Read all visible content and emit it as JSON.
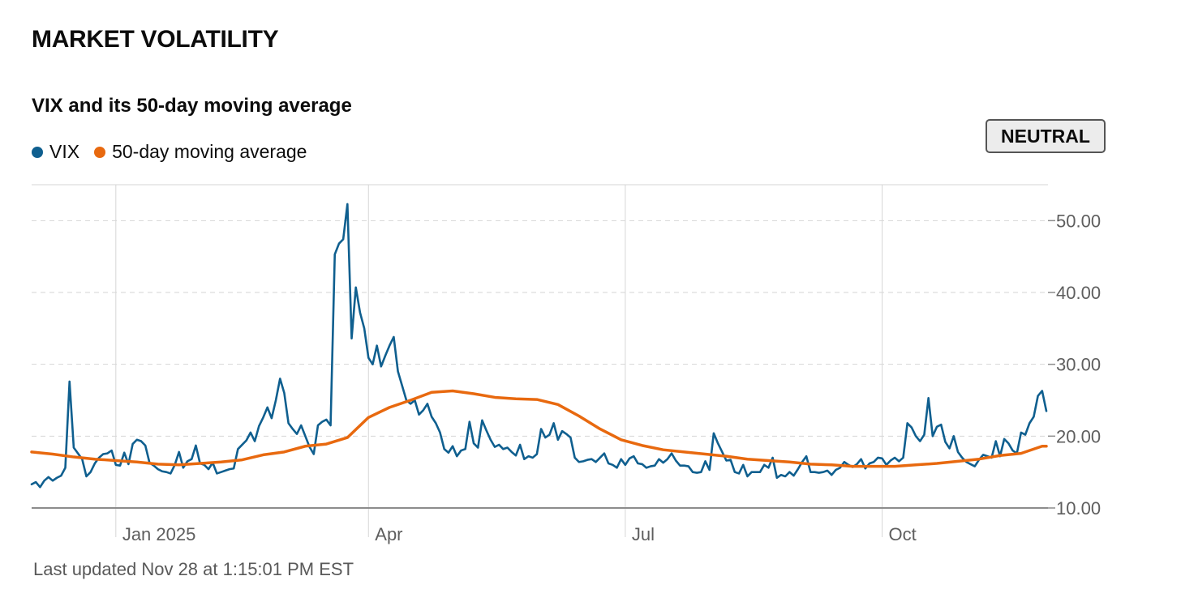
{
  "header": {
    "title": "MARKET VOLATILITY"
  },
  "status_badge": {
    "label": "NEUTRAL"
  },
  "footer": {
    "last_updated": "Last updated Nov 28 at 1:15:01 PM EST"
  },
  "colors": {
    "vix": "#0f5f8f",
    "ma": "#e8690f",
    "grid": "#d6d6d6",
    "axis": "#8c8c8c"
  },
  "chart_data": {
    "type": "line",
    "title": "VIX and its 50-day moving average",
    "xlabel": "",
    "ylabel": "",
    "x_domain": [
      0,
      241
    ],
    "ylim": [
      10,
      55
    ],
    "y_ticks": [
      {
        "value": 10,
        "label": "10.00"
      },
      {
        "value": 20,
        "label": "20.00"
      },
      {
        "value": 30,
        "label": "30.00"
      },
      {
        "value": 40,
        "label": "40.00"
      },
      {
        "value": 50,
        "label": "50.00"
      }
    ],
    "x_ticks": [
      {
        "x": 20,
        "label": "Jan 2025"
      },
      {
        "x": 80,
        "label": "Apr"
      },
      {
        "x": 141,
        "label": "Jul"
      },
      {
        "x": 202,
        "label": "Oct"
      }
    ],
    "legend_position": "top-left",
    "series": [
      {
        "name": "VIX",
        "color_key": "vix",
        "points": [
          [
            0,
            13.3
          ],
          [
            1,
            13.6
          ],
          [
            2,
            12.9
          ],
          [
            3,
            13.8
          ],
          [
            4,
            14.3
          ],
          [
            5,
            13.8
          ],
          [
            6,
            14.2
          ],
          [
            7,
            14.5
          ],
          [
            8,
            15.6
          ],
          [
            9,
            27.6
          ],
          [
            10,
            18.4
          ],
          [
            11,
            17.6
          ],
          [
            12,
            16.8
          ],
          [
            13,
            14.4
          ],
          [
            14,
            15.0
          ],
          [
            15,
            16.2
          ],
          [
            16,
            17.0
          ],
          [
            17,
            17.5
          ],
          [
            18,
            17.6
          ],
          [
            19,
            18.0
          ],
          [
            20,
            16.0
          ],
          [
            21,
            15.9
          ],
          [
            22,
            17.7
          ],
          [
            23,
            16.1
          ],
          [
            24,
            18.9
          ],
          [
            25,
            19.5
          ],
          [
            26,
            19.3
          ],
          [
            27,
            18.7
          ],
          [
            28,
            16.3
          ],
          [
            29,
            15.9
          ],
          [
            30,
            15.4
          ],
          [
            31,
            15.1
          ],
          [
            32,
            15.0
          ],
          [
            33,
            14.8
          ],
          [
            34,
            16.0
          ],
          [
            35,
            17.8
          ],
          [
            36,
            15.6
          ],
          [
            37,
            16.5
          ],
          [
            38,
            16.8
          ],
          [
            39,
            18.7
          ],
          [
            40,
            16.2
          ],
          [
            41,
            16.0
          ],
          [
            42,
            15.4
          ],
          [
            43,
            16.3
          ],
          [
            44,
            14.8
          ],
          [
            45,
            15.0
          ],
          [
            46,
            15.2
          ],
          [
            47,
            15.4
          ],
          [
            48,
            15.5
          ],
          [
            49,
            18.2
          ],
          [
            50,
            18.8
          ],
          [
            51,
            19.4
          ],
          [
            52,
            20.5
          ],
          [
            53,
            19.3
          ],
          [
            54,
            21.4
          ],
          [
            55,
            22.6
          ],
          [
            56,
            24.0
          ],
          [
            57,
            22.5
          ],
          [
            58,
            25.0
          ],
          [
            59,
            28.0
          ],
          [
            60,
            26.0
          ],
          [
            61,
            21.8
          ],
          [
            62,
            21.0
          ],
          [
            63,
            20.3
          ],
          [
            64,
            21.5
          ],
          [
            65,
            20.0
          ],
          [
            66,
            18.5
          ],
          [
            67,
            17.5
          ],
          [
            68,
            21.5
          ],
          [
            69,
            22.0
          ],
          [
            70,
            22.3
          ],
          [
            71,
            21.5
          ],
          [
            72,
            45.3
          ],
          [
            73,
            46.8
          ],
          [
            74,
            47.4
          ],
          [
            75,
            52.3
          ],
          [
            76,
            33.6
          ],
          [
            77,
            40.7
          ],
          [
            78,
            37.2
          ],
          [
            79,
            35.0
          ],
          [
            80,
            30.9
          ],
          [
            81,
            30.0
          ],
          [
            82,
            32.6
          ],
          [
            83,
            29.7
          ],
          [
            84,
            31.2
          ],
          [
            85,
            32.6
          ],
          [
            86,
            33.8
          ],
          [
            87,
            29.0
          ],
          [
            88,
            27.0
          ],
          [
            89,
            25.0
          ],
          [
            90,
            24.5
          ],
          [
            91,
            25.0
          ],
          [
            92,
            23.0
          ],
          [
            93,
            23.6
          ],
          [
            94,
            24.5
          ],
          [
            95,
            22.7
          ],
          [
            96,
            21.8
          ],
          [
            97,
            20.5
          ],
          [
            98,
            18.2
          ],
          [
            99,
            17.7
          ],
          [
            100,
            18.6
          ],
          [
            101,
            17.2
          ],
          [
            102,
            18.0
          ],
          [
            103,
            18.2
          ],
          [
            104,
            22.0
          ],
          [
            105,
            19.0
          ],
          [
            106,
            18.4
          ],
          [
            107,
            22.2
          ],
          [
            108,
            20.8
          ],
          [
            109,
            19.5
          ],
          [
            110,
            18.5
          ],
          [
            111,
            18.8
          ],
          [
            112,
            18.2
          ],
          [
            113,
            18.4
          ],
          [
            114,
            17.8
          ],
          [
            115,
            17.3
          ],
          [
            116,
            18.8
          ],
          [
            117,
            16.8
          ],
          [
            118,
            17.2
          ],
          [
            119,
            17.0
          ],
          [
            120,
            17.5
          ],
          [
            121,
            21.0
          ],
          [
            122,
            19.8
          ],
          [
            123,
            20.2
          ],
          [
            124,
            21.8
          ],
          [
            125,
            19.5
          ],
          [
            126,
            20.7
          ],
          [
            127,
            20.3
          ],
          [
            128,
            19.8
          ],
          [
            129,
            17.0
          ],
          [
            130,
            16.4
          ],
          [
            131,
            16.5
          ],
          [
            132,
            16.7
          ],
          [
            133,
            16.8
          ],
          [
            134,
            16.4
          ],
          [
            135,
            17.0
          ],
          [
            136,
            17.6
          ],
          [
            137,
            16.2
          ],
          [
            138,
            16.0
          ],
          [
            139,
            15.6
          ],
          [
            140,
            16.8
          ],
          [
            141,
            16.0
          ],
          [
            142,
            16.9
          ],
          [
            143,
            17.2
          ],
          [
            144,
            16.2
          ],
          [
            145,
            16.1
          ],
          [
            146,
            15.6
          ],
          [
            147,
            15.8
          ],
          [
            148,
            15.9
          ],
          [
            149,
            16.8
          ],
          [
            150,
            16.3
          ],
          [
            151,
            16.8
          ],
          [
            152,
            17.6
          ],
          [
            153,
            16.6
          ],
          [
            154,
            15.9
          ],
          [
            155,
            15.9
          ],
          [
            156,
            15.8
          ],
          [
            157,
            15.0
          ],
          [
            158,
            14.9
          ],
          [
            159,
            15.0
          ],
          [
            160,
            16.5
          ],
          [
            161,
            15.3
          ],
          [
            162,
            20.4
          ],
          [
            163,
            19.0
          ],
          [
            164,
            17.8
          ],
          [
            165,
            16.6
          ],
          [
            166,
            16.7
          ],
          [
            167,
            15.0
          ],
          [
            168,
            14.8
          ],
          [
            169,
            16.0
          ],
          [
            170,
            14.4
          ],
          [
            171,
            15.0
          ],
          [
            172,
            15.0
          ],
          [
            173,
            15.0
          ],
          [
            174,
            16.0
          ],
          [
            175,
            15.6
          ],
          [
            176,
            17.0
          ],
          [
            177,
            14.2
          ],
          [
            178,
            14.6
          ],
          [
            179,
            14.4
          ],
          [
            180,
            15.0
          ],
          [
            181,
            14.5
          ],
          [
            182,
            15.4
          ],
          [
            183,
            16.4
          ],
          [
            184,
            17.2
          ],
          [
            185,
            15.0
          ],
          [
            186,
            15.0
          ],
          [
            187,
            14.9
          ],
          [
            188,
            15.0
          ],
          [
            189,
            15.2
          ],
          [
            190,
            14.6
          ],
          [
            191,
            15.3
          ],
          [
            192,
            15.6
          ],
          [
            193,
            16.4
          ],
          [
            194,
            16.0
          ],
          [
            195,
            15.7
          ],
          [
            196,
            16.1
          ],
          [
            197,
            16.8
          ],
          [
            198,
            15.5
          ],
          [
            199,
            16.2
          ],
          [
            200,
            16.4
          ],
          [
            201,
            17.0
          ],
          [
            202,
            16.9
          ],
          [
            203,
            16.0
          ],
          [
            204,
            16.6
          ],
          [
            205,
            17.0
          ],
          [
            206,
            16.5
          ],
          [
            207,
            17.0
          ],
          [
            208,
            21.8
          ],
          [
            209,
            21.2
          ],
          [
            210,
            20.0
          ],
          [
            211,
            19.3
          ],
          [
            212,
            20.2
          ],
          [
            213,
            25.3
          ],
          [
            214,
            20.0
          ],
          [
            215,
            21.3
          ],
          [
            216,
            21.6
          ],
          [
            217,
            19.2
          ],
          [
            218,
            18.3
          ],
          [
            219,
            20.0
          ],
          [
            220,
            17.8
          ],
          [
            221,
            17.0
          ],
          [
            222,
            16.4
          ],
          [
            223,
            16.1
          ],
          [
            224,
            15.8
          ],
          [
            225,
            16.7
          ],
          [
            226,
            17.4
          ],
          [
            227,
            17.2
          ],
          [
            228,
            17.0
          ],
          [
            229,
            19.3
          ],
          [
            230,
            17.2
          ],
          [
            231,
            19.6
          ],
          [
            232,
            19.0
          ],
          [
            233,
            18.0
          ],
          [
            234,
            17.6
          ],
          [
            235,
            20.5
          ],
          [
            236,
            20.2
          ],
          [
            237,
            21.8
          ],
          [
            238,
            22.7
          ],
          [
            239,
            25.6
          ],
          [
            240,
            26.3
          ],
          [
            241,
            23.5
          ]
        ]
      },
      {
        "name": "50-day moving average",
        "color_key": "ma",
        "points": [
          [
            0,
            17.8
          ],
          [
            5,
            17.5
          ],
          [
            10,
            17.1
          ],
          [
            15,
            16.8
          ],
          [
            20,
            16.6
          ],
          [
            25,
            16.4
          ],
          [
            30,
            16.1
          ],
          [
            35,
            16.0
          ],
          [
            40,
            16.2
          ],
          [
            45,
            16.4
          ],
          [
            50,
            16.7
          ],
          [
            55,
            17.4
          ],
          [
            60,
            17.8
          ],
          [
            65,
            18.6
          ],
          [
            70,
            18.9
          ],
          [
            75,
            19.8
          ],
          [
            80,
            22.6
          ],
          [
            85,
            24.0
          ],
          [
            90,
            25.0
          ],
          [
            95,
            26.1
          ],
          [
            100,
            26.3
          ],
          [
            105,
            25.9
          ],
          [
            110,
            25.4
          ],
          [
            115,
            25.2
          ],
          [
            120,
            25.1
          ],
          [
            125,
            24.4
          ],
          [
            130,
            22.8
          ],
          [
            135,
            21.0
          ],
          [
            140,
            19.5
          ],
          [
            145,
            18.7
          ],
          [
            150,
            18.1
          ],
          [
            155,
            17.8
          ],
          [
            160,
            17.5
          ],
          [
            165,
            17.2
          ],
          [
            170,
            16.8
          ],
          [
            175,
            16.6
          ],
          [
            180,
            16.4
          ],
          [
            185,
            16.1
          ],
          [
            190,
            16.0
          ],
          [
            195,
            15.8
          ],
          [
            200,
            15.8
          ],
          [
            205,
            15.8
          ],
          [
            210,
            16.0
          ],
          [
            215,
            16.2
          ],
          [
            220,
            16.5
          ],
          [
            225,
            16.8
          ],
          [
            230,
            17.3
          ],
          [
            235,
            17.6
          ],
          [
            240,
            18.6
          ],
          [
            241,
            18.6
          ]
        ]
      }
    ]
  }
}
